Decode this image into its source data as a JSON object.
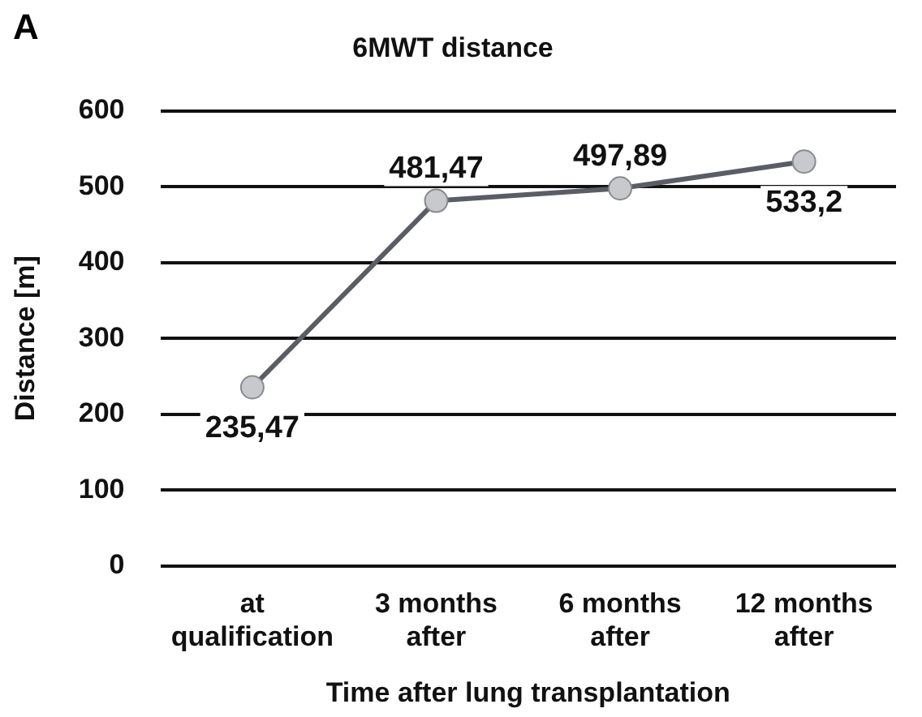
{
  "chart_data": {
    "type": "line",
    "title": "6MWT distance",
    "xlabel": "Time after lung transplantation",
    "ylabel": "Distance [m]",
    "annotations": [
      "A"
    ],
    "categories": [
      "at\nqualification",
      "3 months\nafter",
      "6 months\nafter",
      "12 months\nafter"
    ],
    "series": [
      {
        "color": "#5b5d66",
        "values": [
          235.47,
          481.47,
          497.89,
          533.2
        ],
        "value_labels": [
          "235,47",
          "481,47",
          "497,89",
          "533,2"
        ]
      }
    ],
    "ylim": [
      0,
      600
    ],
    "yticks": [
      0,
      100,
      200,
      300,
      400,
      500,
      600
    ],
    "grid": "y",
    "legend": false,
    "marker": "circle",
    "line_style": "solid"
  }
}
